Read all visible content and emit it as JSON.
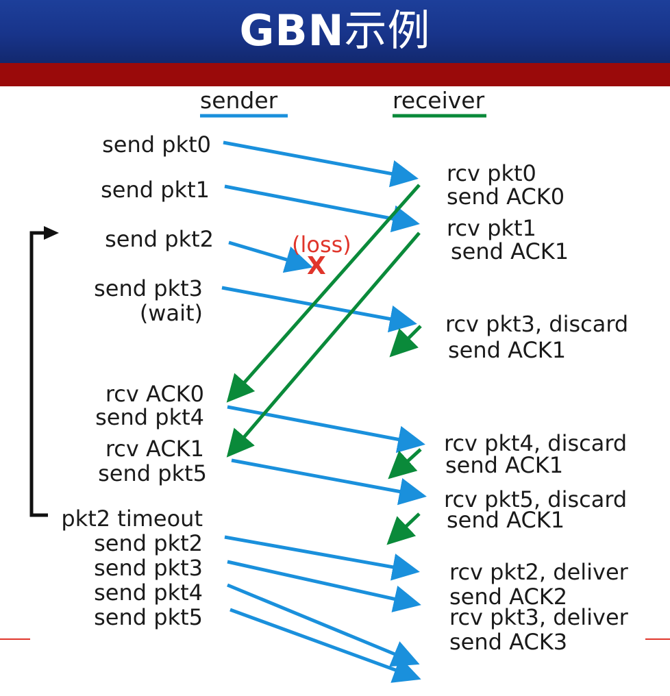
{
  "title": {
    "latin": "GBN",
    "cjk": "示例"
  },
  "headers": {
    "sender": "sender",
    "receiver": "receiver"
  },
  "colors": {
    "blue": "#1a90dc",
    "green": "#0a8a3a",
    "title_bg": "#1d3f9a",
    "band": "#9a0a0a",
    "loss": "#e0352b",
    "text": "#1a1a1a"
  },
  "sender_labels": [
    "send pkt0",
    "send pkt1",
    "send pkt2",
    "send pkt3",
    "(wait)",
    "rcv ACK0",
    "send pkt4",
    "rcv ACK1",
    "send pkt5",
    "pkt2 timeout",
    "send pkt2",
    "send pkt3",
    "send pkt4",
    "send pkt5"
  ],
  "receiver_labels": [
    "rcv pkt0",
    "send ACK0",
    "rcv pkt1",
    "send ACK1",
    "rcv pkt3, discard",
    "send ACK1",
    "rcv pkt4, discard",
    "send ACK1",
    "rcv pkt5, discard",
    "send ACK1",
    "rcv pkt2, deliver",
    "send ACK2",
    "rcv pkt3, deliver",
    "send ACK3"
  ],
  "loss": {
    "text": "(loss)",
    "mark": "X"
  }
}
